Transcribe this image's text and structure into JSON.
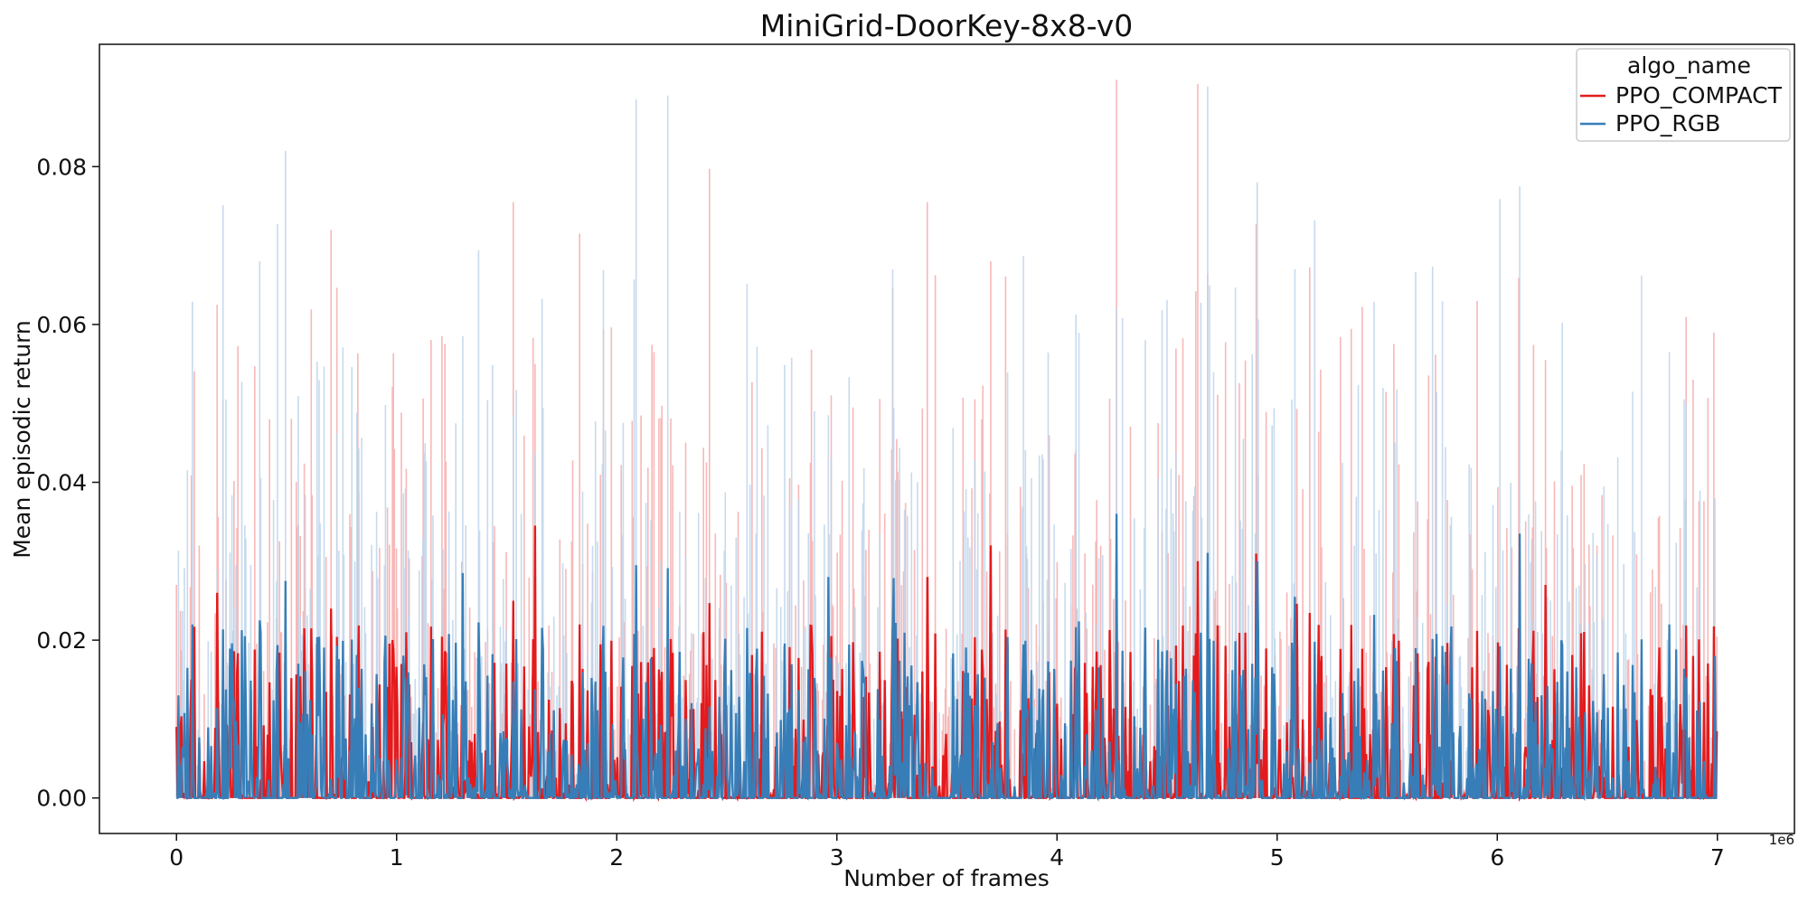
{
  "chart_data": {
    "type": "line",
    "title": "MiniGrid-DoorKey-8x8-v0",
    "xlabel": "Number of frames",
    "ylabel": "Mean episodic return",
    "x_offset_label": "1e6",
    "xlim": [
      -350000,
      7350000
    ],
    "ylim": [
      -0.0045,
      0.0955
    ],
    "x_ticks": [
      0,
      1000000,
      2000000,
      3000000,
      4000000,
      5000000,
      6000000,
      7000000
    ],
    "x_tick_labels": [
      "0",
      "1",
      "2",
      "3",
      "4",
      "5",
      "6",
      "7"
    ],
    "y_ticks": [
      0.0,
      0.02,
      0.04,
      0.06,
      0.08
    ],
    "y_tick_labels": [
      "0.00",
      "0.02",
      "0.04",
      "0.06",
      "0.08"
    ],
    "grid": false,
    "legend": {
      "title": "algo_name",
      "placement": "top-right"
    },
    "series": [
      {
        "name": "PPO_COMPACT",
        "color": "#e41a1c",
        "band_color": "#f7b4b4",
        "x_range": [
          0,
          7000000
        ],
        "notable_peaks": [
          {
            "x": 0,
            "mean": 0.009,
            "upper": 0.027
          },
          {
            "x": 185000,
            "mean": 0.026,
            "upper": 0.0625
          },
          {
            "x": 210000,
            "mean": 0.016,
            "upper": 0.0505
          },
          {
            "x": 700000,
            "mean": 0.024,
            "upper": 0.072
          },
          {
            "x": 1530000,
            "mean": 0.025,
            "upper": 0.0755
          },
          {
            "x": 1630000,
            "mean": 0.0345,
            "upper": 0.055
          },
          {
            "x": 1830000,
            "mean": 0.022,
            "upper": 0.0715
          },
          {
            "x": 2170000,
            "mean": 0.019,
            "upper": 0.0565
          },
          {
            "x": 3410000,
            "mean": 0.028,
            "upper": 0.0755
          },
          {
            "x": 3700000,
            "mean": 0.032,
            "upper": 0.068
          },
          {
            "x": 4270000,
            "mean": 0.03,
            "upper": 0.091
          },
          {
            "x": 4640000,
            "mean": 0.03,
            "upper": 0.0905
          },
          {
            "x": 6220000,
            "mean": 0.027,
            "upper": 0.0555
          },
          {
            "x": 6890000,
            "mean": 0.018,
            "upper": 0.053
          }
        ]
      },
      {
        "name": "PPO_RGB",
        "color": "#377eb8",
        "band_color": "#bdd3ea",
        "x_range": [
          0,
          7000000
        ],
        "notable_peaks": [
          {
            "x": 50000,
            "mean": 0.0165,
            "upper": 0.0415
          },
          {
            "x": 380000,
            "mean": 0.0225,
            "upper": 0.068
          },
          {
            "x": 495000,
            "mean": 0.0275,
            "upper": 0.082
          },
          {
            "x": 1300000,
            "mean": 0.0285,
            "upper": 0.0585
          },
          {
            "x": 2090000,
            "mean": 0.0295,
            "upper": 0.0885
          },
          {
            "x": 2960000,
            "mean": 0.028,
            "upper": 0.0485
          },
          {
            "x": 4270000,
            "mean": 0.036,
            "upper": 0.062
          },
          {
            "x": 4910000,
            "mean": 0.03,
            "upper": 0.078
          },
          {
            "x": 5080000,
            "mean": 0.0255,
            "upper": 0.067
          },
          {
            "x": 6100000,
            "mean": 0.0335,
            "upper": 0.0775
          },
          {
            "x": 6780000,
            "mean": 0.022,
            "upper": 0.0565
          },
          {
            "x": 6990000,
            "mean": 0.018,
            "upper": 0.038
          }
        ]
      }
    ]
  }
}
